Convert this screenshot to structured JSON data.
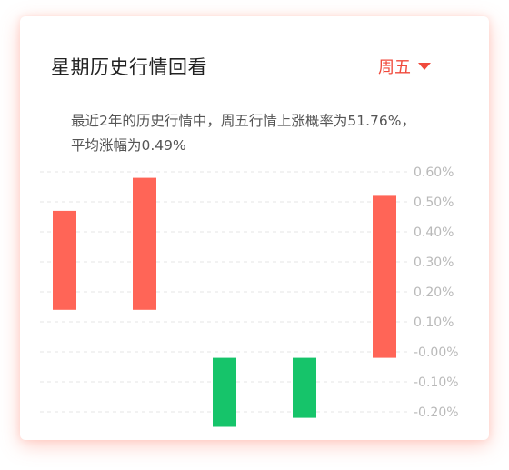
{
  "header": {
    "title": "星期历史行情回看",
    "day_selected": "周五"
  },
  "summary": {
    "line1": "最近2年的历史行情中，周五行情上涨概率为51.76%，",
    "line2": "平均涨幅为0.49%"
  },
  "colors": {
    "up": "#ff6557",
    "down": "#16c46a",
    "accent": "#f04a3c",
    "grid": "#e4e4e4",
    "tick": "#b9b9b9"
  },
  "chart_data": {
    "type": "bar",
    "subtype": "floating",
    "x": [
      1,
      2,
      3,
      4,
      5
    ],
    "series": [
      {
        "low": [
          0.14,
          0.14,
          -0.25,
          -0.22,
          -0.02
        ],
        "high": [
          0.47,
          0.58,
          -0.02,
          -0.02,
          0.52
        ]
      }
    ],
    "yticks": [
      "0.60%",
      "0.50%",
      "0.40%",
      "0.30%",
      "0.20%",
      "0.10%",
      "-0.00%",
      "-0.10%",
      "-0.20%"
    ],
    "ylim": [
      -0.25,
      0.6
    ],
    "grid": true,
    "ytick_position": "right"
  }
}
